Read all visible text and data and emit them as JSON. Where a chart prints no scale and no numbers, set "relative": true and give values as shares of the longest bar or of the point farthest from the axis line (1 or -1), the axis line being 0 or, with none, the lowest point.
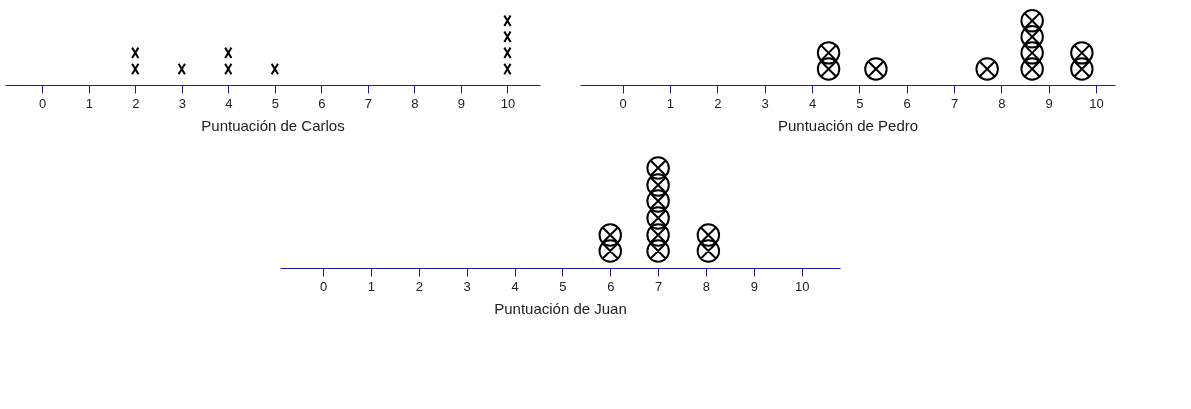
{
  "chart_data": [
    {
      "type": "scatter",
      "xlabel": "Puntuación de Carlos",
      "marker": "cross",
      "tick_labels": "x",
      "grid": false,
      "relative": true,
      "xlim": [
        -0.8,
        10.7
      ],
      "xticks": [
        0,
        1,
        2,
        3,
        4,
        5,
        6,
        7,
        8,
        9,
        10
      ],
      "series": [
        {
          "color": "#000000",
          "x": [
            2,
            2,
            3,
            4,
            4,
            5,
            10,
            10,
            10,
            10
          ],
          "values": [
            0.25,
            0.5,
            0.25,
            0.25,
            0.5,
            0.25,
            0.25,
            0.5,
            0.75,
            1
          ]
        }
      ]
    },
    {
      "type": "scatter",
      "xlabel": "Puntuación de Pedro",
      "marker": "circle",
      "tick_labels": "x",
      "grid": false,
      "relative": true,
      "xlim": [
        -0.9,
        10.4
      ],
      "xticks": [
        0,
        1,
        2,
        3,
        4,
        5,
        6,
        7,
        8,
        9,
        10
      ],
      "series": [
        {
          "color": "#000000",
          "x": [
            4.35,
            4.35,
            5.35,
            7.7,
            8.65,
            8.65,
            8.65,
            8.65,
            9.7,
            9.7
          ],
          "values": [
            0.25,
            0.5,
            0.25,
            0.25,
            0.25,
            0.5,
            0.75,
            1,
            0.25,
            0.5
          ]
        }
      ]
    },
    {
      "type": "scatter",
      "xlabel": "Puntuación de Juan",
      "marker": "circle",
      "tick_labels": "x",
      "grid": false,
      "relative": true,
      "xlim": [
        -0.9,
        10.8
      ],
      "xticks": [
        0,
        1,
        2,
        3,
        4,
        5,
        6,
        7,
        8,
        9,
        10
      ],
      "series": [
        {
          "color": "#000000",
          "x": [
            6,
            6,
            7,
            7,
            7,
            7,
            7,
            7,
            8.05,
            8.05
          ],
          "values": [
            0.17,
            0.33,
            0.17,
            0.33,
            0.5,
            0.67,
            0.83,
            1,
            0.17,
            0.33
          ]
        }
      ]
    }
  ]
}
